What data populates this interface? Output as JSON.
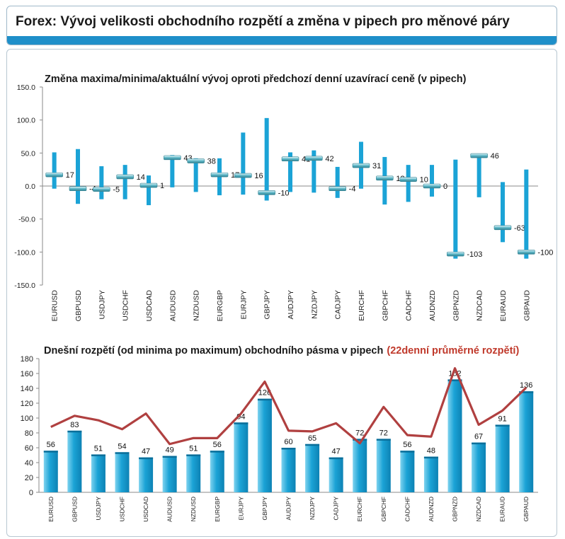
{
  "page": {
    "title": "Forex: Vývoj velikosti obchodního rozpětí a změna v pipech pro měnové páry"
  },
  "colors": {
    "header_bar": "#1e8fc9",
    "bar": "#1ba3d6",
    "bar_dark": "#0d82b4",
    "marker": "#5fb8c8",
    "avg_line": "#b04040",
    "subtitle_red": "#c0392b"
  },
  "chart_data": [
    {
      "type": "range",
      "title": "Změna maxima/minima/aktuální vývoj oproti předchozí denní uzavírací ceně (v pipech)",
      "categories": [
        "EURUSD",
        "GBPUSD",
        "USDJPY",
        "USDCHF",
        "USDCAD",
        "AUDUSD",
        "NZDUSD",
        "EURGBP",
        "EURJPY",
        "GBPJPY",
        "AUDJPY",
        "NZDJPY",
        "CADJPY",
        "EURCHF",
        "GBPCHF",
        "CADCHF",
        "AUDNZD",
        "GBPNZD",
        "NZDCAD",
        "EURAUD",
        "GBPAUD"
      ],
      "high": [
        51,
        56,
        30,
        32,
        16,
        47,
        42,
        42,
        81,
        103,
        51,
        54,
        29,
        67,
        44,
        32,
        32,
        40,
        49,
        6,
        25
      ],
      "low": [
        -4,
        -27,
        -20,
        -20,
        -29,
        -2,
        -9,
        -14,
        -13,
        -22,
        -9,
        -10,
        -18,
        -4,
        -28,
        -24,
        -16,
        -110,
        -17,
        -85,
        -110
      ],
      "current": [
        17,
        -4,
        -5,
        14,
        1,
        43,
        38,
        17,
        16,
        -10,
        41,
        42,
        -4,
        31,
        12,
        10,
        0,
        -103,
        46,
        -63,
        -100
      ],
      "labels": [
        "17",
        "-4",
        "-5",
        "14",
        "1",
        "43",
        "38",
        "17",
        "16",
        "-10",
        "41",
        "42",
        "-4",
        "31",
        "12",
        "10",
        "0",
        "-103",
        "46",
        "-63",
        "-100"
      ],
      "ylim": [
        -150,
        150
      ],
      "yticks": [
        "150.0",
        "100.0",
        "50.0",
        "0.0",
        "-50.0",
        "-100.0",
        "-150.0"
      ],
      "ytick_values": [
        150,
        100,
        50,
        0,
        -50,
        -100,
        -150
      ],
      "grid": false
    },
    {
      "type": "bar",
      "title": "Dnešní rozpětí (od minima po maximum) obchodního pásma v pipech",
      "title_suffix": "(22denní průměrné rozpětí)",
      "categories": [
        "EURUSD",
        "GBPUSD",
        "USDJPY",
        "USDCHF",
        "USDCAD",
        "AUDUSD",
        "NZDUSD",
        "EURGBP",
        "EURJPY",
        "GBPJPY",
        "AUDJPY",
        "NZDJPY",
        "CADJPY",
        "EURCHF",
        "GBPCHF",
        "CADCHF",
        "AUDNZD",
        "GBPNZD",
        "NZDCAD",
        "EURAUD",
        "GBPAUD"
      ],
      "values": [
        56,
        83,
        51,
        54,
        47,
        49,
        51,
        56,
        94,
        126,
        60,
        65,
        47,
        72,
        72,
        56,
        48,
        152,
        67,
        91,
        136
      ],
      "labels": [
        "56",
        "83",
        "51",
        "54",
        "47",
        "49",
        "51",
        "56",
        "94",
        "126",
        "60",
        "65",
        "47",
        "72",
        "72",
        "56",
        "48",
        "152",
        "67",
        "91",
        "136"
      ],
      "line_values": [
        88,
        103,
        97,
        85,
        106,
        65,
        73,
        73,
        106,
        149,
        83,
        82,
        93,
        66,
        115,
        77,
        75,
        167,
        91,
        110,
        141
      ],
      "ylim": [
        0,
        180
      ],
      "yticks": [
        "180",
        "160",
        "140",
        "120",
        "100",
        "80",
        "60",
        "40",
        "20",
        "0"
      ],
      "ytick_values": [
        180,
        160,
        140,
        120,
        100,
        80,
        60,
        40,
        20,
        0
      ],
      "grid": false
    }
  ]
}
